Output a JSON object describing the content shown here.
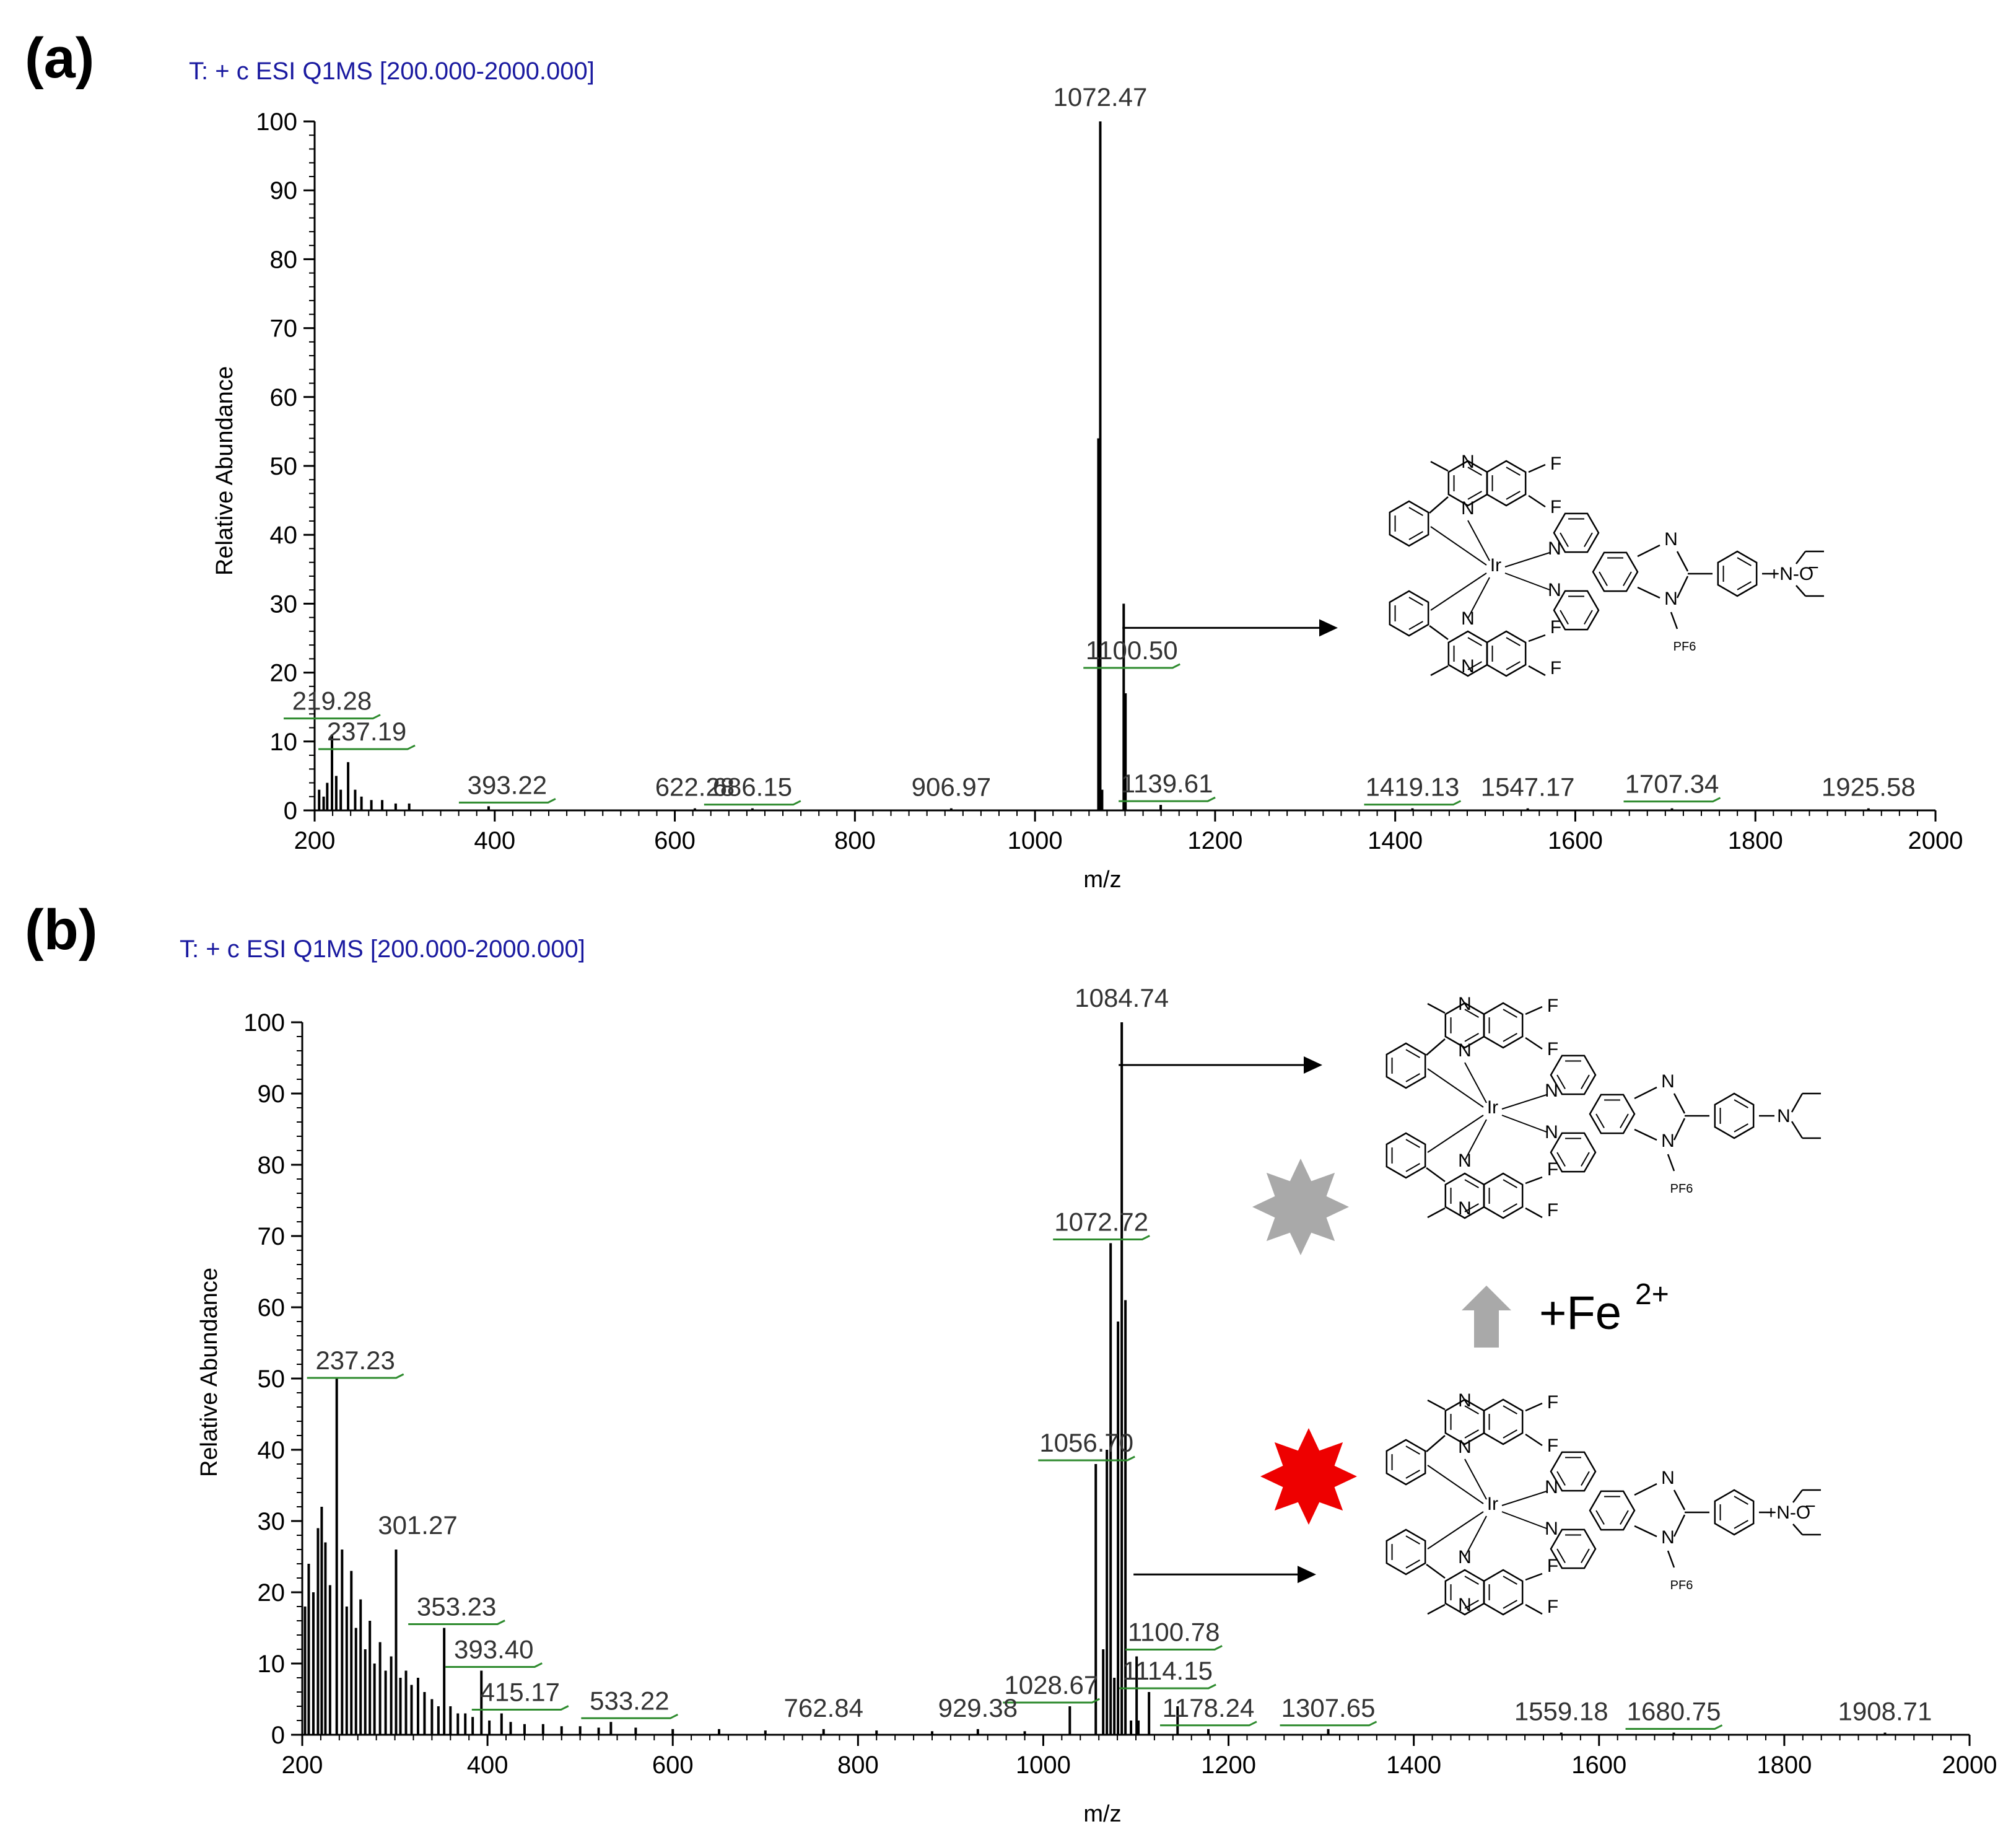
{
  "chart_data": [
    {
      "panel": "(a)",
      "type": "bar",
      "title": "T: + c ESI Q1MS [200.000-2000.000]",
      "xlabel": "m/z",
      "ylabel": "Relative Abundance",
      "xlim": [
        200,
        2000
      ],
      "ylim": [
        0,
        100
      ],
      "xticks": [
        200,
        400,
        600,
        800,
        1000,
        1200,
        1400,
        1600,
        1800,
        2000
      ],
      "yticks": [
        0,
        10,
        20,
        30,
        40,
        50,
        60,
        70,
        80,
        90,
        100
      ],
      "peaks": [
        {
          "mz": 1072.47,
          "intensity": 100,
          "label": "1072.47"
        },
        {
          "mz": 1100.5,
          "intensity": 17,
          "label": "1100.50"
        },
        {
          "mz": 219.28,
          "intensity": 11,
          "label": "219.28"
        },
        {
          "mz": 237.19,
          "intensity": 7,
          "label": "237.19"
        },
        {
          "mz": 393.22,
          "intensity": 0.6,
          "label": "393.22"
        },
        {
          "mz": 622.28,
          "intensity": 0.3,
          "label": "622.28"
        },
        {
          "mz": 686.15,
          "intensity": 0.3,
          "label": "686.15"
        },
        {
          "mz": 906.97,
          "intensity": 0.3,
          "label": "906.97"
        },
        {
          "mz": 1139.61,
          "intensity": 0.8,
          "label": "1139.61"
        },
        {
          "mz": 1419.13,
          "intensity": 0.3,
          "label": "1419.13"
        },
        {
          "mz": 1547.17,
          "intensity": 0.3,
          "label": "1547.17"
        },
        {
          "mz": 1707.34,
          "intensity": 0.3,
          "label": "1707.34"
        },
        {
          "mz": 1925.58,
          "intensity": 0.3,
          "label": "1925.58"
        }
      ],
      "extra_peaks": [
        {
          "mz": 1070.4,
          "intensity": 54
        },
        {
          "mz": 1074.5,
          "intensity": 3
        },
        {
          "mz": 1098.5,
          "intensity": 30
        },
        {
          "mz": 205,
          "intensity": 3
        },
        {
          "mz": 210,
          "intensity": 2
        },
        {
          "mz": 214,
          "intensity": 4
        },
        {
          "mz": 224,
          "intensity": 5
        },
        {
          "mz": 229,
          "intensity": 3
        },
        {
          "mz": 245,
          "intensity": 3
        },
        {
          "mz": 252,
          "intensity": 2
        },
        {
          "mz": 263,
          "intensity": 1.5
        },
        {
          "mz": 275,
          "intensity": 1.5
        },
        {
          "mz": 290,
          "intensity": 1
        },
        {
          "mz": 305,
          "intensity": 1
        }
      ]
    },
    {
      "panel": "(b)",
      "type": "bar",
      "title": "T: + c ESI Q1MS [200.000-2000.000]",
      "xlabel": "m/z",
      "ylabel": "Relative Abundance",
      "xlim": [
        200,
        2000
      ],
      "ylim": [
        0,
        100
      ],
      "xticks": [
        200,
        400,
        600,
        800,
        1000,
        1200,
        1400,
        1600,
        1800,
        2000
      ],
      "yticks": [
        0,
        10,
        20,
        30,
        40,
        50,
        60,
        70,
        80,
        90,
        100
      ],
      "peaks": [
        {
          "mz": 1084.74,
          "intensity": 100,
          "label": "1084.74"
        },
        {
          "mz": 1072.72,
          "intensity": 69,
          "label": "1072.72"
        },
        {
          "mz": 1056.7,
          "intensity": 38,
          "label": "1056.70"
        },
        {
          "mz": 1100.78,
          "intensity": 11,
          "label": "1100.78"
        },
        {
          "mz": 1028.67,
          "intensity": 4,
          "label": "1028.67"
        },
        {
          "mz": 1114.15,
          "intensity": 6,
          "label": "1114.15"
        },
        {
          "mz": 1178.24,
          "intensity": 0.8,
          "label": "1178.24"
        },
        {
          "mz": 1307.65,
          "intensity": 0.8,
          "label": "1307.65"
        },
        {
          "mz": 1559.18,
          "intensity": 0.3,
          "label": "1559.18"
        },
        {
          "mz": 1680.75,
          "intensity": 0.3,
          "label": "1680.75"
        },
        {
          "mz": 1908.71,
          "intensity": 0.3,
          "label": "1908.71"
        },
        {
          "mz": 237.23,
          "intensity": 50,
          "label": "237.23"
        },
        {
          "mz": 301.27,
          "intensity": 26,
          "label": "301.27"
        },
        {
          "mz": 353.23,
          "intensity": 15,
          "label": "353.23"
        },
        {
          "mz": 393.4,
          "intensity": 9,
          "label": "393.40"
        },
        {
          "mz": 415.17,
          "intensity": 3,
          "label": "415.17"
        },
        {
          "mz": 533.22,
          "intensity": 1.8,
          "label": "533.22"
        },
        {
          "mz": 762.84,
          "intensity": 0.8,
          "label": "762.84"
        },
        {
          "mz": 929.38,
          "intensity": 0.8,
          "label": "929.38"
        }
      ],
      "extra_peaks": [
        {
          "mz": 1064.7,
          "intensity": 12
        },
        {
          "mz": 1068.7,
          "intensity": 40
        },
        {
          "mz": 1076.7,
          "intensity": 8
        },
        {
          "mz": 1080.7,
          "intensity": 58
        },
        {
          "mz": 1088.7,
          "intensity": 61
        },
        {
          "mz": 1094.7,
          "intensity": 2
        },
        {
          "mz": 1102.7,
          "intensity": 2
        },
        {
          "mz": 1145,
          "intensity": 4
        },
        {
          "mz": 203,
          "intensity": 18
        },
        {
          "mz": 207,
          "intensity": 24
        },
        {
          "mz": 212,
          "intensity": 20
        },
        {
          "mz": 217,
          "intensity": 29
        },
        {
          "mz": 221,
          "intensity": 32
        },
        {
          "mz": 225,
          "intensity": 27
        },
        {
          "mz": 230,
          "intensity": 21
        },
        {
          "mz": 243,
          "intensity": 26
        },
        {
          "mz": 248,
          "intensity": 18
        },
        {
          "mz": 253,
          "intensity": 23
        },
        {
          "mz": 258,
          "intensity": 15
        },
        {
          "mz": 263,
          "intensity": 19
        },
        {
          "mz": 268,
          "intensity": 12
        },
        {
          "mz": 273,
          "intensity": 16
        },
        {
          "mz": 278,
          "intensity": 10
        },
        {
          "mz": 284,
          "intensity": 13
        },
        {
          "mz": 290,
          "intensity": 9
        },
        {
          "mz": 296,
          "intensity": 11
        },
        {
          "mz": 306,
          "intensity": 8
        },
        {
          "mz": 312,
          "intensity": 9
        },
        {
          "mz": 318,
          "intensity": 7
        },
        {
          "mz": 325,
          "intensity": 8
        },
        {
          "mz": 332,
          "intensity": 6
        },
        {
          "mz": 340,
          "intensity": 5
        },
        {
          "mz": 347,
          "intensity": 4
        },
        {
          "mz": 360,
          "intensity": 4
        },
        {
          "mz": 368,
          "intensity": 3
        },
        {
          "mz": 376,
          "intensity": 3
        },
        {
          "mz": 384,
          "intensity": 2.5
        },
        {
          "mz": 402,
          "intensity": 2
        },
        {
          "mz": 425,
          "intensity": 1.8
        },
        {
          "mz": 440,
          "intensity": 1.5
        },
        {
          "mz": 460,
          "intensity": 1.5
        },
        {
          "mz": 480,
          "intensity": 1.2
        },
        {
          "mz": 500,
          "intensity": 1.2
        },
        {
          "mz": 520,
          "intensity": 1
        },
        {
          "mz": 560,
          "intensity": 1
        },
        {
          "mz": 600,
          "intensity": 0.8
        },
        {
          "mz": 650,
          "intensity": 0.8
        },
        {
          "mz": 700,
          "intensity": 0.6
        },
        {
          "mz": 820,
          "intensity": 0.6
        },
        {
          "mz": 880,
          "intensity": 0.5
        },
        {
          "mz": 980,
          "intensity": 0.5
        }
      ]
    }
  ],
  "structures": {
    "atom_N": "N",
    "atom_F": "F",
    "atom_Ir": "Ir",
    "atom_O": "O",
    "n_oxide": "+N-O",
    "counterion": "PF6",
    "tail_suffix": "−",
    "star_gray_color": "#a9a9a9",
    "star_red_color": "#ee0000"
  },
  "fe_annotation": {
    "text": "+Fe",
    "superscript": "2+"
  },
  "colors": {
    "header": "#1a1aa0",
    "annotation_underline": "#2e8b2e",
    "arrow_gray": "#a9a9a9"
  }
}
